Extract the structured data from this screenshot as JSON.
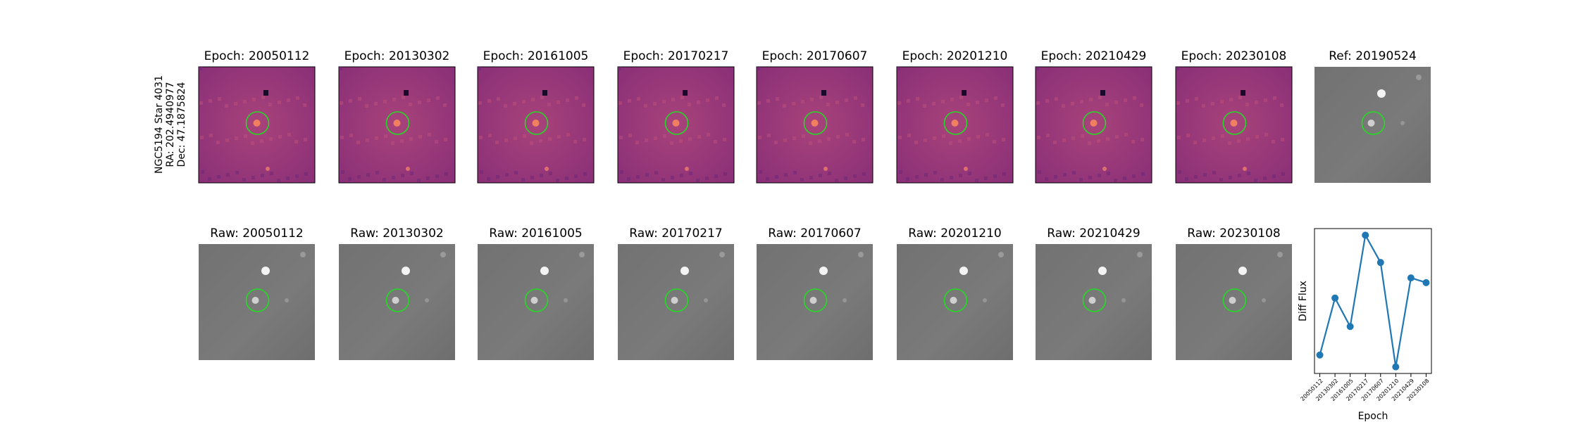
{
  "star_label": [
    "NGC5194 Star 4031",
    "RA: 202.4940977",
    "Dec: 47.1875824"
  ],
  "diff_titles": [
    "Epoch: 20050112",
    "Epoch: 20130302",
    "Epoch: 20161005",
    "Epoch: 20170217",
    "Epoch: 20170607",
    "Epoch: 20201210",
    "Epoch: 20210429",
    "Epoch: 20230108"
  ],
  "ref_title": "Ref: 20190524",
  "raw_titles": [
    "Raw: 20050112",
    "Raw: 20130302",
    "Raw: 20161005",
    "Raw: 20170217",
    "Raw: 20170607",
    "Raw: 20201210",
    "Raw: 20210429",
    "Raw: 20230108"
  ],
  "chart_data": {
    "type": "line",
    "xlabel": "Epoch",
    "ylabel": "Diff Flux",
    "color": "#1f77b4",
    "categories": [
      "20050112",
      "20130302",
      "20161005",
      "20170217",
      "20170607",
      "20201210",
      "20210429",
      "20230108"
    ],
    "values": [
      25,
      73,
      49,
      126,
      103,
      15,
      90,
      86
    ]
  }
}
